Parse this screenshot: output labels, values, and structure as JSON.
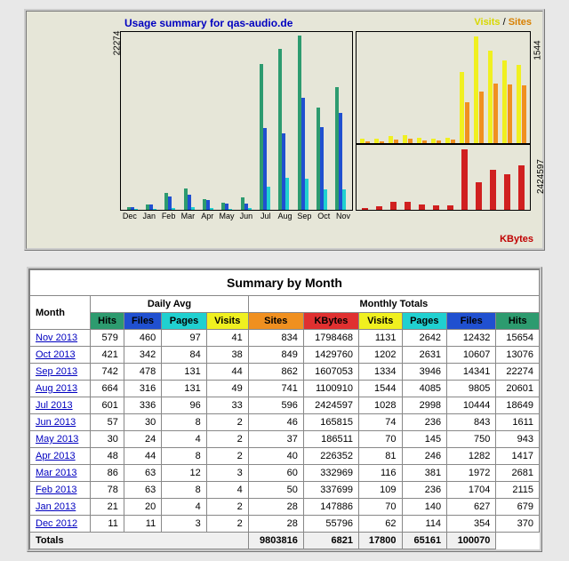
{
  "chart": {
    "title": "Usage summary for qas-audio.de",
    "legend": {
      "visits": "Visits",
      "sites": "Sites",
      "sep": " / "
    },
    "side": {
      "pages": "Pages",
      "files": "Files",
      "hits": "Hits"
    },
    "kbytes_label": "KBytes",
    "y_left_max": 22274,
    "y_right_top_max": 1544,
    "y_right_bot_max": 2424597,
    "months": [
      "Dec",
      "Jan",
      "Feb",
      "Mar",
      "Apr",
      "May",
      "Jun",
      "Jul",
      "Aug",
      "Sep",
      "Oct",
      "Nov"
    ],
    "colors": {
      "hits": "#2d9b6f",
      "files": "#2050d0",
      "pages": "#20d0d0",
      "visits": "#f0f020",
      "sites": "#f09020",
      "kbytes": "#d02020",
      "bg": "#e6e6d8",
      "border": "#000000"
    },
    "left_series": {
      "hits": [
        370,
        679,
        2115,
        2681,
        1417,
        943,
        1611,
        18649,
        20601,
        22274,
        13076,
        15654
      ],
      "files": [
        354,
        627,
        1704,
        1972,
        1282,
        750,
        843,
        10444,
        9805,
        14341,
        10607,
        12432
      ],
      "pages": [
        114,
        140,
        236,
        381,
        246,
        145,
        236,
        2998,
        4085,
        3946,
        2631,
        2642
      ]
    },
    "right_top_series": {
      "visits": [
        62,
        70,
        109,
        116,
        81,
        70,
        74,
        1028,
        1544,
        1334,
        1202,
        1131
      ],
      "sites": [
        28,
        28,
        50,
        60,
        40,
        37,
        46,
        596,
        741,
        862,
        849,
        834
      ]
    },
    "right_bot_series": {
      "kbytes": [
        55796,
        147886,
        337699,
        332969,
        226352,
        186511,
        165815,
        2424597,
        1100910,
        1607053,
        1429760,
        1798468
      ]
    }
  },
  "table": {
    "title": "Summary by Month",
    "month_label": "Month",
    "daily_avg": "Daily Avg",
    "monthly_totals": "Monthly Totals",
    "totals_label": "Totals",
    "headers": {
      "hits": "Hits",
      "files": "Files",
      "pages": "Pages",
      "visits": "Visits",
      "sites": "Sites",
      "kbytes": "KBytes"
    },
    "rows": [
      {
        "m": "Nov 2013",
        "da": [
          579,
          460,
          97,
          41
        ],
        "mt": [
          834,
          1798468,
          1131,
          2642,
          12432,
          15654
        ]
      },
      {
        "m": "Oct 2013",
        "da": [
          421,
          342,
          84,
          38
        ],
        "mt": [
          849,
          1429760,
          1202,
          2631,
          10607,
          13076
        ]
      },
      {
        "m": "Sep 2013",
        "da": [
          742,
          478,
          131,
          44
        ],
        "mt": [
          862,
          1607053,
          1334,
          3946,
          14341,
          22274
        ]
      },
      {
        "m": "Aug 2013",
        "da": [
          664,
          316,
          131,
          49
        ],
        "mt": [
          741,
          1100910,
          1544,
          4085,
          9805,
          20601
        ]
      },
      {
        "m": "Jul 2013",
        "da": [
          601,
          336,
          96,
          33
        ],
        "mt": [
          596,
          2424597,
          1028,
          2998,
          10444,
          18649
        ]
      },
      {
        "m": "Jun 2013",
        "da": [
          57,
          30,
          8,
          2
        ],
        "mt": [
          46,
          165815,
          74,
          236,
          843,
          1611
        ]
      },
      {
        "m": "May 2013",
        "da": [
          30,
          24,
          4,
          2
        ],
        "mt": [
          37,
          186511,
          70,
          145,
          750,
          943
        ]
      },
      {
        "m": "Apr 2013",
        "da": [
          48,
          44,
          8,
          2
        ],
        "mt": [
          40,
          226352,
          81,
          246,
          1282,
          1417
        ]
      },
      {
        "m": "Mar 2013",
        "da": [
          86,
          63,
          12,
          3
        ],
        "mt": [
          60,
          332969,
          116,
          381,
          1972,
          2681
        ]
      },
      {
        "m": "Feb 2013",
        "da": [
          78,
          63,
          8,
          4
        ],
        "mt": [
          50,
          337699,
          109,
          236,
          1704,
          2115
        ]
      },
      {
        "m": "Jan 2013",
        "da": [
          21,
          20,
          4,
          2
        ],
        "mt": [
          28,
          147886,
          70,
          140,
          627,
          679
        ]
      },
      {
        "m": "Dec 2012",
        "da": [
          11,
          11,
          3,
          2
        ],
        "mt": [
          28,
          55796,
          62,
          114,
          354,
          370
        ]
      }
    ],
    "totals": {
      "kbytes": 9803816,
      "visits": 6821,
      "pages": 17800,
      "files": 65161,
      "hits": 100070
    }
  }
}
